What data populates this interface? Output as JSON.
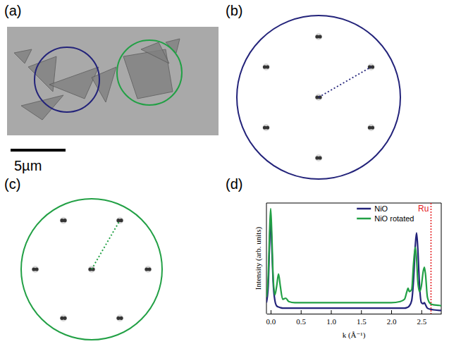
{
  "panels": {
    "a": {
      "label": "(a)",
      "scale_bar": "5µm"
    },
    "b": {
      "label": "(b)"
    },
    "c": {
      "label": "(c)"
    },
    "d": {
      "label": "(d)"
    }
  },
  "chart_data": {
    "type": "line",
    "x_label": "k (Å⁻¹)",
    "y_label": "Intensity (arb. units)",
    "x": [
      -0.07,
      -0.04,
      -0.02,
      0.0,
      0.02,
      0.04,
      0.07,
      0.1,
      0.13,
      0.16,
      0.2,
      0.25,
      0.3,
      0.4,
      0.6,
      1.0,
      1.5,
      2.0,
      2.15,
      2.22,
      2.26,
      2.28,
      2.3,
      2.34,
      2.37,
      2.4,
      2.42,
      2.44,
      2.47,
      2.5,
      2.53,
      2.55,
      2.57,
      2.6,
      2.65,
      2.7,
      2.8,
      2.83
    ],
    "series": [
      {
        "name": "NiO",
        "color": "#23237a",
        "values": [
          0.1,
          0.25,
          0.6,
          0.88,
          0.6,
          0.3,
          0.12,
          0.07,
          0.06,
          0.055,
          0.05,
          0.05,
          0.05,
          0.05,
          0.05,
          0.05,
          0.05,
          0.05,
          0.05,
          0.05,
          0.055,
          0.06,
          0.07,
          0.12,
          0.3,
          0.62,
          0.73,
          0.6,
          0.25,
          0.1,
          0.09,
          0.1,
          0.08,
          0.05,
          0.04,
          0.035,
          0.03,
          0.03
        ]
      },
      {
        "name": "NiO rotated",
        "color": "#22a045",
        "values": [
          0.15,
          0.35,
          0.7,
          0.95,
          0.7,
          0.35,
          0.17,
          0.25,
          0.36,
          0.25,
          0.13,
          0.14,
          0.11,
          0.1,
          0.1,
          0.1,
          0.1,
          0.1,
          0.11,
          0.13,
          0.2,
          0.23,
          0.2,
          0.22,
          0.45,
          0.6,
          0.5,
          0.3,
          0.2,
          0.25,
          0.38,
          0.42,
          0.35,
          0.15,
          0.09,
          0.08,
          0.075,
          0.07
        ]
      }
    ],
    "xlim": [
      -0.07,
      2.83
    ],
    "xticks": [
      {
        "value": 0,
        "label": "0.0"
      },
      0.5,
      {
        "value": 1,
        "label": "1.0"
      },
      1.5,
      {
        "value": 2,
        "label": "2.0"
      },
      2.5
    ],
    "ylim": [
      0,
      1
    ],
    "tick_labels": "x",
    "legend": "upper right",
    "annotations": [
      {
        "text": "Ru",
        "x": 2.66,
        "color": "#e41a1c",
        "line_style": "dotted"
      }
    ]
  }
}
